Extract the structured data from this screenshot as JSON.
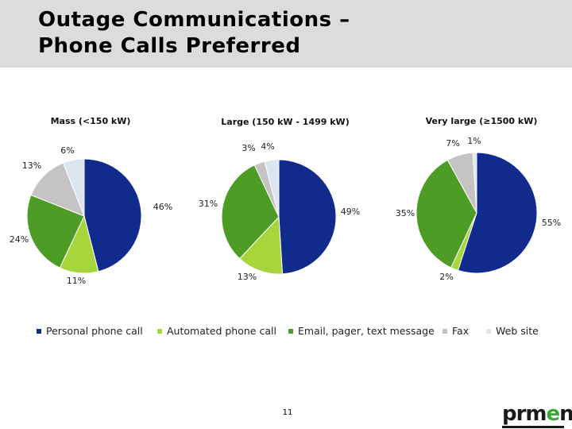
{
  "slide": {
    "title_line1": "Outage Communications –",
    "title_line2": "Phone Calls Preferred",
    "page_number": "11",
    "logo_dark": "prm",
    "logo_green": "e",
    "logo_dark2": "n"
  },
  "colors": {
    "Personal phone call": "#112b8c",
    "Automated phone call": "#a6d63c",
    "Email, pager, text message": "#4d9c25",
    "Fax": "#c4c4c4",
    "Web site": "#dde5f0"
  },
  "legend": [
    "Personal phone call",
    "Automated phone call",
    "Email, pager, text message",
    "Fax",
    "Web site"
  ],
  "chart_data": [
    {
      "type": "pie",
      "title": "Mass (<150 kW)",
      "categories": [
        "Personal phone call",
        "Automated phone call",
        "Email, pager, text message",
        "Fax",
        "Web site"
      ],
      "values": [
        46,
        11,
        24,
        13,
        6
      ],
      "labels": [
        "46%",
        "11%",
        "24%",
        "13%",
        "6%"
      ]
    },
    {
      "type": "pie",
      "title": "Large (150 kW - 1499 kW)",
      "categories": [
        "Personal phone call",
        "Automated phone call",
        "Email, pager, text message",
        "Fax",
        "Web site"
      ],
      "values": [
        49,
        13,
        31,
        3,
        4
      ],
      "labels": [
        "49%",
        "13%",
        "31%",
        "3%",
        "4%"
      ]
    },
    {
      "type": "pie",
      "title": "Very large (≥1500 kW)",
      "categories": [
        "Personal phone call",
        "Automated phone call",
        "Email, pager, text message",
        "Fax",
        "Web site"
      ],
      "values": [
        55,
        2,
        35,
        7,
        1
      ],
      "labels": [
        "55%",
        "2%",
        "35%",
        "7%",
        "1%"
      ]
    }
  ]
}
